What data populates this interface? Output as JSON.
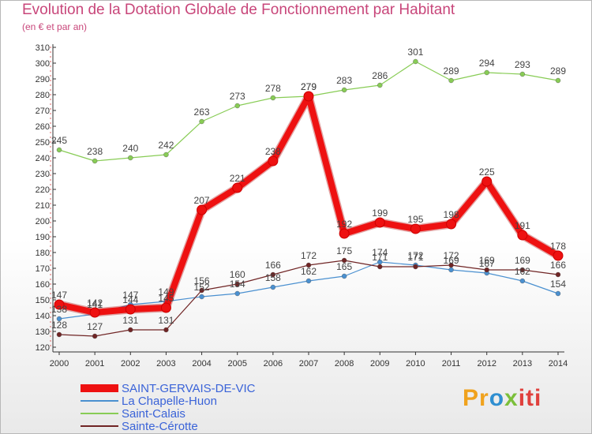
{
  "chart_data": {
    "type": "line",
    "title": "Evolution de la Dotation Globale de Fonctionnement par Habitant",
    "subtitle": "(en € et par an)",
    "xlabel": "",
    "ylabel": "",
    "ylim": [
      120,
      310
    ],
    "ytick_step": 10,
    "grid": false,
    "legend_position": "bottom-left",
    "categories": [
      "2000",
      "2001",
      "2002",
      "2003",
      "2004",
      "2005",
      "2006",
      "2007",
      "2008",
      "2009",
      "2010",
      "2011",
      "2012",
      "2013",
      "2014"
    ],
    "series": [
      {
        "name": "SAINT-GERVAIS-DE-VIC",
        "color": "#ee1111",
        "values": [
          147,
          142,
          144,
          145,
          207,
          221,
          238,
          279,
          192,
          199,
          195,
          198,
          225,
          191,
          178
        ]
      },
      {
        "name": "La Chapelle-Huon",
        "color": "#4a90d0",
        "values": [
          138,
          141,
          147,
          149,
          152,
          154,
          158,
          162,
          165,
          174,
          172,
          169,
          167,
          162,
          154
        ]
      },
      {
        "name": "Saint-Calais",
        "color": "#88cc55",
        "values": [
          245,
          238,
          240,
          242,
          263,
          273,
          278,
          279,
          283,
          286,
          301,
          289,
          294,
          293,
          289
        ]
      },
      {
        "name": "Sainte-Cérotte",
        "color": "#702525",
        "values": [
          128,
          127,
          131,
          131,
          156,
          160,
          166,
          172,
          175,
          171,
          171,
          172,
          169,
          169,
          166
        ]
      }
    ]
  },
  "logo": {
    "p1": "Pr",
    "p2": "o",
    "p3": "x",
    "p4": "iti"
  }
}
